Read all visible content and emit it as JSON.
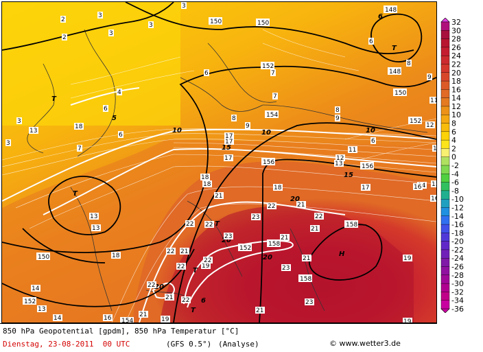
{
  "caption": {
    "line1": "850 hPa Geopotential [gpdm], 850 hPa Temperatur [°C]",
    "date": "Dienstag, 23-08-2011  00 UTC",
    "model": "(GFS 0.5°)",
    "type": "(Analyse)",
    "copyright": "© www.wetter3.de"
  },
  "legend": {
    "labels": [
      "32",
      "30",
      "28",
      "26",
      "24",
      "22",
      "20",
      "18",
      "16",
      "14",
      "12",
      "10",
      "8",
      "6",
      "4",
      "2",
      "0",
      "-2",
      "-4",
      "-6",
      "-8",
      "-10",
      "-12",
      "-14",
      "-16",
      "-18",
      "-20",
      "-22",
      "-24",
      "-26",
      "-28",
      "-30",
      "-32",
      "-34",
      "-36"
    ],
    "colors": [
      "#e040e0",
      "#b0107a",
      "#a8103e",
      "#b81530",
      "#c41c30",
      "#cc2a2e",
      "#d4362c",
      "#d8462a",
      "#dc5a28",
      "#e06a26",
      "#e47a22",
      "#ec9218",
      "#f4a812",
      "#f8bc0c",
      "#fcd208",
      "#fce41c",
      "#f8f070",
      "#b0e060",
      "#80d850",
      "#50d040",
      "#30c060",
      "#20b090",
      "#20a0c0",
      "#2090e0",
      "#3070f0",
      "#4050e8",
      "#5038d8",
      "#6028c8",
      "#7020b8",
      "#8018a8",
      "#9010a0",
      "#a00898",
      "#b00090",
      "#c00088",
      "#c800a0"
    ]
  },
  "map_labels": {
    "highs": [
      {
        "text": "H"
      }
    ],
    "lows": [
      {
        "text": "T"
      },
      {
        "text": "T"
      },
      {
        "text": "T"
      },
      {
        "text": "T"
      },
      {
        "text": "T"
      },
      {
        "text": "T"
      }
    ],
    "geopotential": [
      "150",
      "150",
      "152",
      "154",
      "156",
      "156",
      "158",
      "158",
      "158",
      "150",
      "152",
      "152",
      "148",
      "148",
      "150",
      "152",
      "154"
    ],
    "temperature_isolines": [
      "5",
      "10",
      "10",
      "10",
      "15",
      "15",
      "20",
      "20",
      "20",
      "20",
      "6",
      "6"
    ],
    "local_values": [
      "2",
      "3",
      "3",
      "2",
      "3",
      "3",
      "3",
      "3",
      "4",
      "6",
      "6",
      "6",
      "7",
      "7",
      "8",
      "7",
      "6",
      "8",
      "9",
      "8",
      "9",
      "9",
      "6",
      "11",
      "11",
      "12",
      "12",
      "13",
      "13",
      "13",
      "13",
      "14",
      "14",
      "16",
      "17",
      "17",
      "17",
      "17",
      "18",
      "18",
      "18",
      "18",
      "19",
      "19",
      "21",
      "21",
      "21",
      "21",
      "21",
      "21",
      "22",
      "22",
      "22",
      "22",
      "22",
      "22",
      "23",
      "23",
      "23",
      "23",
      "21",
      "21",
      "22",
      "21",
      "19",
      "16",
      "16",
      "14",
      "13",
      "14",
      "13",
      "18",
      "22",
      "19",
      "22"
    ]
  }
}
